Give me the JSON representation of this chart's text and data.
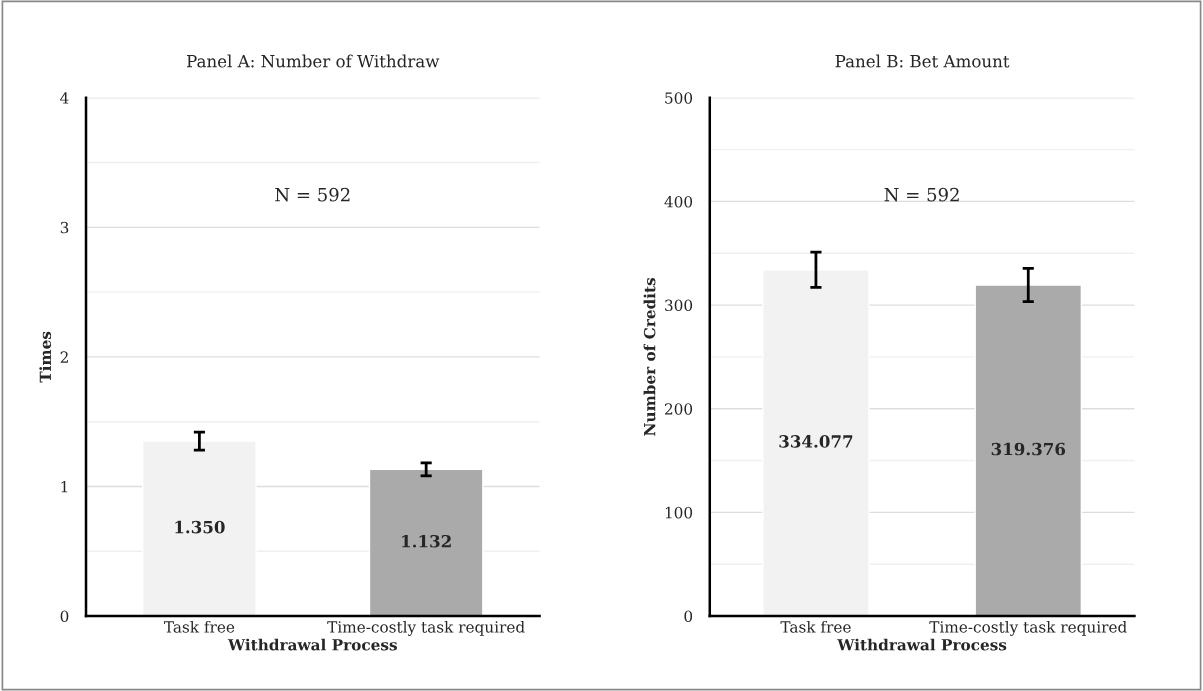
{
  "chart_data": [
    {
      "type": "bar",
      "title": "Panel A: Number of Withdraw",
      "xlabel": "Withdrawal Process",
      "ylabel": "Times",
      "categories": [
        "Task free",
        "Time-costly task required"
      ],
      "values": [
        1.35,
        1.132
      ],
      "colors": [
        "#f2f2f2",
        "#aaaaaa"
      ],
      "errors": [
        0.07,
        0.05
      ],
      "value_labels": [
        "1.350",
        "1.132"
      ],
      "ylim": [
        0,
        4
      ],
      "yticks": [
        0,
        {
          "value": 0.5,
          "label": null
        },
        1,
        {
          "value": 1.5,
          "label": null
        },
        2,
        {
          "value": 2.5,
          "label": null
        },
        3,
        {
          "value": 3.5,
          "label": null
        },
        4
      ],
      "grid": "y",
      "annotations": [
        "N = 592"
      ]
    },
    {
      "type": "bar",
      "title": "Panel B: Bet Amount",
      "xlabel": "Withdrawal Process",
      "ylabel": "Number of Credits",
      "categories": [
        "Task free",
        "Time-costly task required"
      ],
      "values": [
        334.077,
        319.376
      ],
      "colors": [
        "#f2f2f2",
        "#aaaaaa"
      ],
      "errors": [
        17,
        16
      ],
      "value_labels": [
        "334.077",
        "319.376"
      ],
      "ylim": [
        0,
        500
      ],
      "yticks": [
        0,
        {
          "value": 50,
          "label": null
        },
        100,
        {
          "value": 150,
          "label": null
        },
        200,
        {
          "value": 250,
          "label": null
        },
        300,
        {
          "value": 350,
          "label": null
        },
        400,
        {
          "value": 450,
          "label": null
        },
        500
      ],
      "grid": "y",
      "annotations": [
        "N = 592"
      ]
    }
  ]
}
